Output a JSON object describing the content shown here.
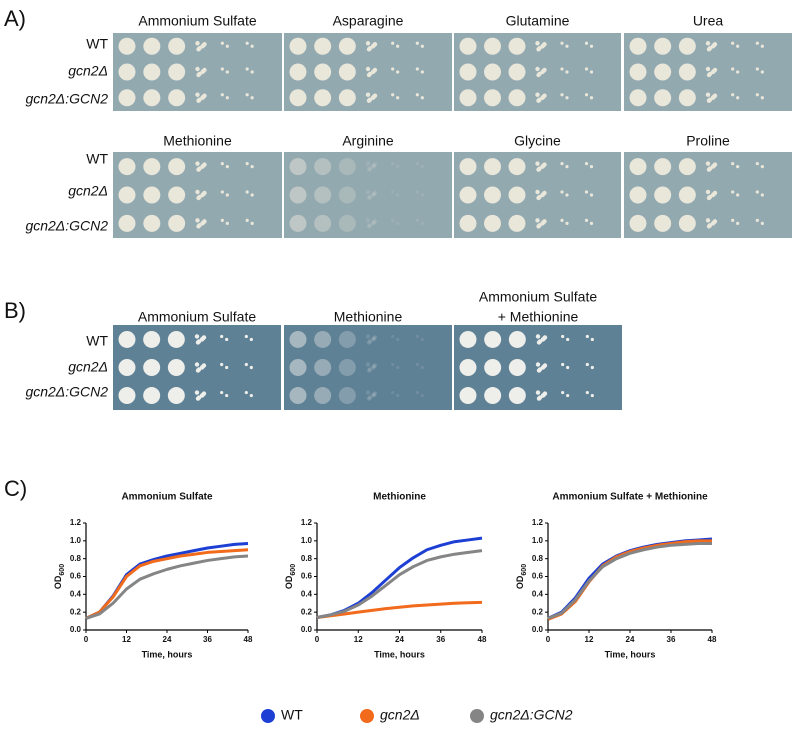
{
  "panel_a": {
    "label": "A)",
    "groups": [
      {
        "plates": [
          "Ammonium Sulfate",
          "Asparagine",
          "Glutamine",
          "Urea"
        ],
        "rows": [
          "WT",
          "gcn2Δ",
          "gcn2Δ:GCN2"
        ]
      },
      {
        "plates": [
          "Methionine",
          "Arginine",
          "Glycine",
          "Proline"
        ],
        "rows": [
          "WT",
          "gcn2Δ",
          "gcn2Δ:GCN2"
        ]
      }
    ]
  },
  "panel_b": {
    "label": "B)",
    "plates": [
      [
        "Ammonium Sulfate"
      ],
      [
        "Methionine"
      ],
      [
        "Ammonium Sulfate",
        "+ Methionine"
      ]
    ],
    "rows": [
      "WT",
      "gcn2Δ",
      "gcn2Δ:GCN2"
    ]
  },
  "panel_c": {
    "label": "C)"
  },
  "chart_data": [
    {
      "type": "line",
      "title": "Ammonium Sulfate",
      "x_label": "Time, hours",
      "y_label": {
        "text": "OD",
        "subscript": "600"
      },
      "x": [
        0,
        4,
        8,
        12,
        16,
        20,
        24,
        28,
        32,
        36,
        40,
        44,
        48
      ],
      "xlim": [
        0,
        48
      ],
      "xticks": [
        0,
        12,
        24,
        36,
        48
      ],
      "ylim": [
        0,
        1.2
      ],
      "yticks": [
        {
          "value": 0,
          "label": "0.0"
        },
        0.2,
        0.4,
        0.6,
        0.8,
        {
          "value": 1,
          "label": "1.0"
        },
        1.2
      ],
      "series": [
        {
          "name": "WT",
          "color": "#1d3fd4",
          "values": [
            0.13,
            0.2,
            0.38,
            0.62,
            0.74,
            0.79,
            0.83,
            0.86,
            0.89,
            0.92,
            0.94,
            0.96,
            0.97
          ]
        },
        {
          "name": "gcn2Δ",
          "color": "#f26a1b",
          "values": [
            0.13,
            0.2,
            0.37,
            0.6,
            0.72,
            0.77,
            0.8,
            0.83,
            0.85,
            0.87,
            0.88,
            0.89,
            0.9
          ]
        },
        {
          "name": "gcn2Δ:GCN2",
          "color": "#858585",
          "values": [
            0.13,
            0.18,
            0.3,
            0.46,
            0.57,
            0.63,
            0.68,
            0.72,
            0.75,
            0.78,
            0.8,
            0.82,
            0.83
          ]
        }
      ]
    },
    {
      "type": "line",
      "title": "Methionine",
      "x_label": "Time, hours",
      "y_label": {
        "text": "OD",
        "subscript": "600"
      },
      "x": [
        0,
        4,
        8,
        12,
        16,
        20,
        24,
        28,
        32,
        36,
        40,
        44,
        48
      ],
      "xlim": [
        0,
        48
      ],
      "xticks": [
        0,
        12,
        24,
        36,
        48
      ],
      "ylim": [
        0,
        1.2
      ],
      "yticks": [
        {
          "value": 0,
          "label": "0.0"
        },
        0.2,
        0.4,
        0.6,
        0.8,
        {
          "value": 1,
          "label": "1.0"
        },
        1.2
      ],
      "series": [
        {
          "name": "WT",
          "color": "#1d3fd4",
          "values": [
            0.14,
            0.17,
            0.22,
            0.3,
            0.42,
            0.56,
            0.7,
            0.81,
            0.9,
            0.95,
            0.99,
            1.01,
            1.03
          ]
        },
        {
          "name": "gcn2Δ",
          "color": "#f26a1b",
          "values": [
            0.14,
            0.16,
            0.18,
            0.2,
            0.22,
            0.24,
            0.255,
            0.27,
            0.28,
            0.29,
            0.3,
            0.305,
            0.31
          ]
        },
        {
          "name": "gcn2Δ:GCN2",
          "color": "#858585",
          "values": [
            0.14,
            0.17,
            0.21,
            0.28,
            0.38,
            0.5,
            0.62,
            0.71,
            0.78,
            0.82,
            0.85,
            0.87,
            0.89
          ]
        }
      ]
    },
    {
      "type": "line",
      "title": "Ammonium Sulfate + Methionine",
      "x_label": "Time, hours",
      "y_label": {
        "text": "OD",
        "subscript": "600"
      },
      "x": [
        0,
        4,
        8,
        12,
        16,
        20,
        24,
        28,
        32,
        36,
        40,
        44,
        48
      ],
      "xlim": [
        0,
        48
      ],
      "xticks": [
        0,
        12,
        24,
        36,
        48
      ],
      "ylim": [
        0,
        1.2
      ],
      "yticks": [
        {
          "value": 0,
          "label": "0.0"
        },
        0.2,
        0.4,
        0.6,
        0.8,
        {
          "value": 1,
          "label": "1.0"
        },
        1.2
      ],
      "series": [
        {
          "name": "WT",
          "color": "#1d3fd4",
          "values": [
            0.13,
            0.2,
            0.36,
            0.58,
            0.74,
            0.83,
            0.89,
            0.93,
            0.96,
            0.98,
            1.0,
            1.01,
            1.02
          ]
        },
        {
          "name": "gcn2Δ",
          "color": "#f26a1b",
          "values": [
            0.12,
            0.18,
            0.32,
            0.54,
            0.72,
            0.82,
            0.88,
            0.92,
            0.95,
            0.97,
            0.99,
            1.0,
            1.0
          ]
        },
        {
          "name": "gcn2Δ:GCN2",
          "color": "#858585",
          "values": [
            0.13,
            0.19,
            0.34,
            0.55,
            0.71,
            0.8,
            0.86,
            0.9,
            0.93,
            0.95,
            0.96,
            0.97,
            0.97
          ]
        }
      ]
    }
  ]
}
